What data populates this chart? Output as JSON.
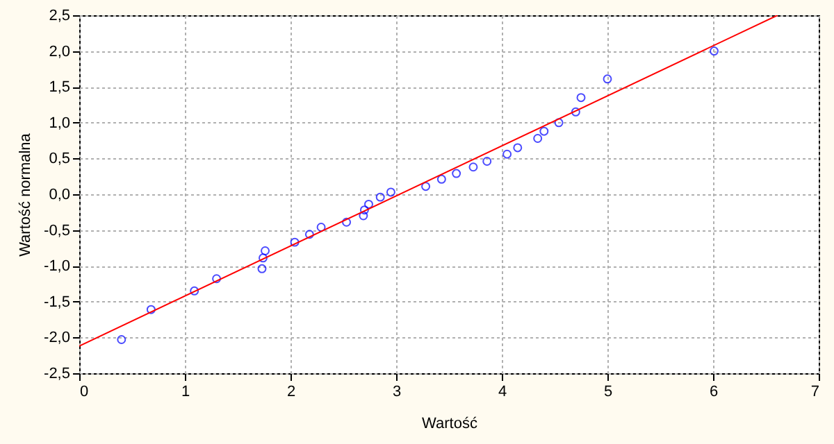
{
  "chart_data": {
    "type": "scatter",
    "xlabel": "Wartość",
    "ylabel": "Wartość normalna",
    "xlim": [
      0,
      7
    ],
    "xticks": [
      0,
      1,
      2,
      3,
      4,
      5,
      6,
      7
    ],
    "ylim": [
      -2.5,
      2.5
    ],
    "yticks": [
      {
        "value": -2.5,
        "label": "-2,5"
      },
      {
        "value": -2,
        "label": "-2,0"
      },
      {
        "value": -1.5,
        "label": "-1,5"
      },
      {
        "value": -1,
        "label": "-1,0"
      },
      {
        "value": -0.5,
        "label": "-0,5"
      },
      {
        "value": 0,
        "label": "0,0"
      },
      {
        "value": 0.5,
        "label": "0,5"
      },
      {
        "value": 1,
        "label": "1,0"
      },
      {
        "value": 1.5,
        "label": "1,5"
      },
      {
        "value": 2,
        "label": "2,0"
      },
      {
        "value": 2.5,
        "label": "2,5"
      }
    ],
    "grid": true,
    "series": [
      {
        "marker": "circle",
        "color": "#0000ff",
        "x": [
          0.4,
          0.68,
          1.09,
          1.3,
          1.73,
          1.74,
          1.76,
          2.04,
          2.18,
          2.29,
          2.53,
          2.69,
          2.7,
          2.74,
          2.85,
          2.95,
          3.28,
          3.43,
          3.57,
          3.73,
          3.86,
          4.05,
          4.15,
          4.34,
          4.4,
          4.54,
          4.7,
          4.75,
          5.0,
          6.01
        ],
        "values": [
          -2.03,
          -1.61,
          -1.35,
          -1.18,
          -1.04,
          -0.89,
          -0.79,
          -0.67,
          -0.56,
          -0.46,
          -0.39,
          -0.3,
          -0.22,
          -0.14,
          -0.04,
          0.03,
          0.11,
          0.21,
          0.29,
          0.38,
          0.46,
          0.56,
          0.65,
          0.78,
          0.88,
          1.0,
          1.15,
          1.35,
          1.61,
          2.0
        ]
      },
      {
        "type": "line",
        "color": "#ff0000",
        "x": [
          0,
          6.61
        ],
        "values": [
          -2.12,
          2.5
        ]
      }
    ]
  }
}
